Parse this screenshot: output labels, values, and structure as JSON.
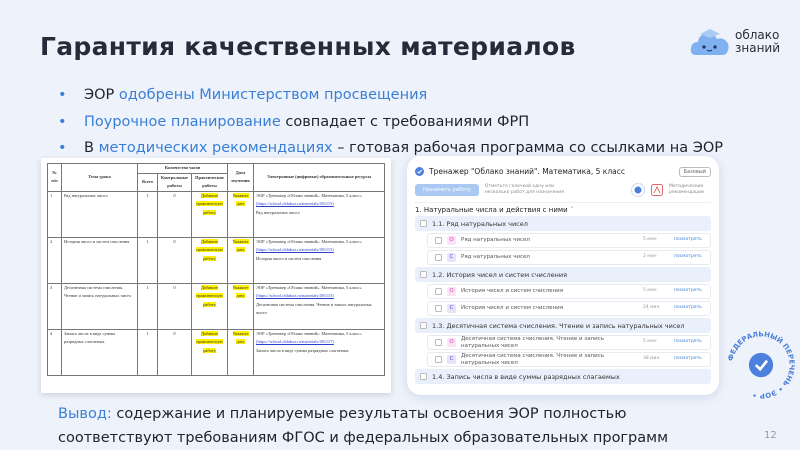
{
  "title": "Гарантия качественных материалов",
  "logo": {
    "line1": "облако",
    "line2": "знаний"
  },
  "bullets": [
    {
      "pre": "ЭОР ",
      "hl": "одобрены Министерством просвещения",
      "post": ""
    },
    {
      "pre": "",
      "hl": "Поурочное планирование",
      "post": " совпадает с требованиями ФРП"
    },
    {
      "pre": "В ",
      "hl": "методических рекомендациях",
      "post": " – готовая рабочая программа со ссылками на ЭОР"
    }
  ],
  "doc_table": {
    "headers": {
      "num": "№ п/п",
      "topic": "Тема урока",
      "hours": "Количество часов",
      "total": "Всего",
      "control": "Контрольные работы",
      "practical": "Практические работы",
      "date": "Дата изучения",
      "resources": "Электронные (цифровые) образовательные ресурсы"
    },
    "rows": [
      {
        "num": "1",
        "topic": "Ряд натуральных чисел",
        "total": "1",
        "control": "0",
        "practical": "Добавьте практическую работу",
        "date": "Укажите дату",
        "res": "ЭОР «Тренажер «Облако знаний». Математика, 5 класс»",
        "link": "(https://school.oblakoz.ru/materials/491115)",
        "res_topic": "Ряд натуральных чисел"
      },
      {
        "num": "2",
        "topic": "История чисел и систем счисления",
        "total": "1",
        "control": "0",
        "practical": "Добавьте практическую работу",
        "date": "Укажите дату",
        "res": "ЭОР «Тренажер «Облако знаний». Математика, 5 класс»",
        "link": "(https://school.oblakoz.ru/materials/491115)",
        "res_topic": "История чисел и систем счисления"
      },
      {
        "num": "3",
        "topic": "Десятичная система счисления. Чтение и запись натуральных чисел",
        "total": "1",
        "control": "0",
        "practical": "Добавьте практическую работу",
        "date": "Укажите дату",
        "res": "ЭОР «Тренажер «Облако знаний». Математика, 5 класс»",
        "link": "(https://school.oblakoz.ru/materials/491115)",
        "res_topic": "Десятичная система счисления. Чтение и запись натуральных чисел"
      },
      {
        "num": "4",
        "topic": "Запись числа в виде суммы разрядных слагаемых",
        "total": "1",
        "control": "0",
        "practical": "Добавьте практическую работу",
        "date": "Укажите дату",
        "res": "ЭОР «Тренажер «Облако знаний». Математика, 5 класс»",
        "link": "(https://school.oblakoz.ru/materials/491117)",
        "res_topic": "Запись числа в виде суммы разрядных слагаемых"
      }
    ]
  },
  "app": {
    "title": "Тренажер \"Облако знаний\". Математика, 5 класс",
    "level": "Базовый",
    "assign": "Назначить работу",
    "hint": "Отметьте галочкой одну или несколько работ для назначения",
    "method": "Методические рекомендации",
    "section": "1. Натуральные числа и действия с ними",
    "subsections": [
      {
        "title": "1.1. Ряд натуральных чисел",
        "items": [
          {
            "tag": "О",
            "name": "Ряд натуральных чисел",
            "dur": "5 мин"
          },
          {
            "tag": "С",
            "name": "Ряд натуральных чисел",
            "dur": "2 мин"
          }
        ]
      },
      {
        "title": "1.2. История чисел и систем счисления",
        "items": [
          {
            "tag": "О",
            "name": "История чисел и систем счисления",
            "dur": "5 мин"
          },
          {
            "tag": "С",
            "name": "История чисел и систем счисления",
            "dur": "24 мин"
          }
        ]
      },
      {
        "title": "1.3. Десятичная система счисления. Чтение и запись натуральных чисел",
        "items": [
          {
            "tag": "О",
            "name": "Десятичная система счисления. Чтение и запись натуральных чисел",
            "dur": "5 мин"
          },
          {
            "tag": "С",
            "name": "Десятичная система счисления. Чтение и запись натуральных чисел",
            "dur": "38 мин"
          }
        ]
      },
      {
        "title": "1.4. Запись числа в виде суммы разрядных слагаемых",
        "items": []
      }
    ],
    "view": "посмотреть"
  },
  "stamp": "ФЕДЕРАЛЬНЫЙ ПЕРЕЧЕНЬ ЭОР",
  "conclusion": {
    "label": "Вывод:",
    "line1": " содержание и планируемые результаты освоения ЭОР полностью",
    "line2": "соответствуют требованиям ФГОС и федеральных образовательных программ"
  },
  "page_number": "12",
  "colors": {
    "accent": "#3a7fd6",
    "background": "#eef2fb",
    "highlight": "#fff200"
  }
}
